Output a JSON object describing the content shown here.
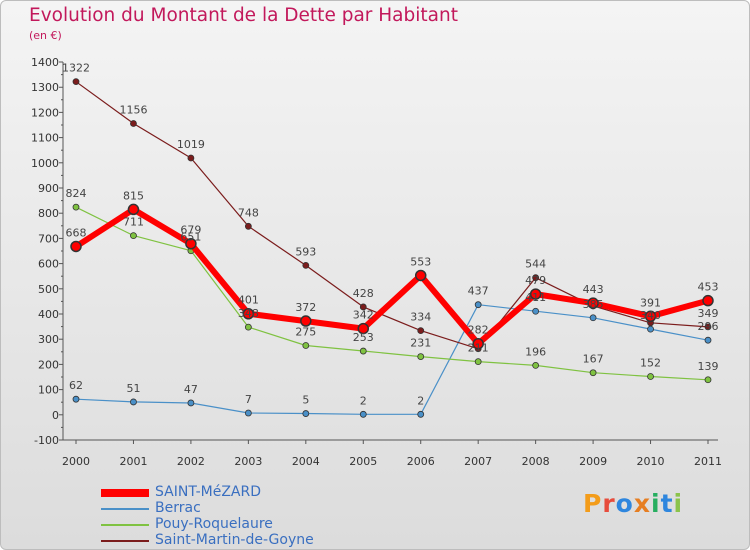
{
  "title": "Evolution du Montant de la Dette par Habitant",
  "subtitle": "(en €)",
  "logo": {
    "letters": [
      {
        "ch": "P",
        "color": "#f39c1a"
      },
      {
        "ch": "r",
        "color": "#e74c3c"
      },
      {
        "ch": "o",
        "color": "#2e86de"
      },
      {
        "ch": "x",
        "color": "#e67e22"
      },
      {
        "ch": "i",
        "color": "#27ae60"
      },
      {
        "ch": "t",
        "color": "#2e86de"
      },
      {
        "ch": "i",
        "color": "#8bc34a"
      }
    ]
  },
  "chart_data": {
    "type": "line",
    "title": "Evolution du Montant de la Dette par Habitant",
    "subtitle": "(en €)",
    "x": [
      "2000",
      "2001",
      "2002",
      "2003",
      "2004",
      "2005",
      "2006",
      "2007",
      "2008",
      "2009",
      "2010",
      "2011"
    ],
    "ylim": [
      -100,
      1400
    ],
    "yticks": [
      -100,
      0,
      100,
      200,
      300,
      400,
      500,
      600,
      700,
      800,
      900,
      1000,
      1100,
      1200,
      1300,
      1400
    ],
    "grid": false,
    "legend_position": "bottom-left",
    "series": [
      {
        "name": "SAINT-MéZARD",
        "color": "#ff0000",
        "values": [
          668,
          815,
          679,
          401,
          372,
          342,
          553,
          282,
          479,
          443,
          391,
          453
        ],
        "labels": [
          "668",
          "815",
          "679",
          "401",
          "372",
          "342",
          "553",
          "282",
          "479",
          "443",
          "391",
          "453"
        ]
      },
      {
        "name": "Berrac",
        "color": "#4a90c8",
        "values": [
          62,
          51,
          47,
          7,
          5,
          2,
          2,
          437,
          411,
          385,
          340,
          296
        ],
        "labels": [
          "62",
          "51",
          "47",
          "7",
          "5",
          "2",
          "2",
          "437",
          "411",
          "385",
          "340",
          "296"
        ]
      },
      {
        "name": "Pouy-Roquelaure",
        "color": "#7fc241",
        "values": [
          824,
          711,
          651,
          348,
          275,
          253,
          231,
          211,
          196,
          167,
          152,
          139
        ],
        "labels": [
          "824",
          "711",
          "651",
          "348",
          "275",
          "253",
          "231",
          "211",
          "196",
          "167",
          "152",
          "139"
        ]
      },
      {
        "name": "Saint-Martin-de-Goyne",
        "color": "#7b1c1c",
        "values": [
          1322,
          1156,
          1019,
          748,
          593,
          428,
          334,
          262,
          544,
          432,
          365,
          349
        ],
        "labels": [
          "1322",
          "1156",
          "1019",
          "748",
          "593",
          "428",
          "334",
          "",
          "544",
          "",
          "",
          "349"
        ]
      }
    ]
  }
}
